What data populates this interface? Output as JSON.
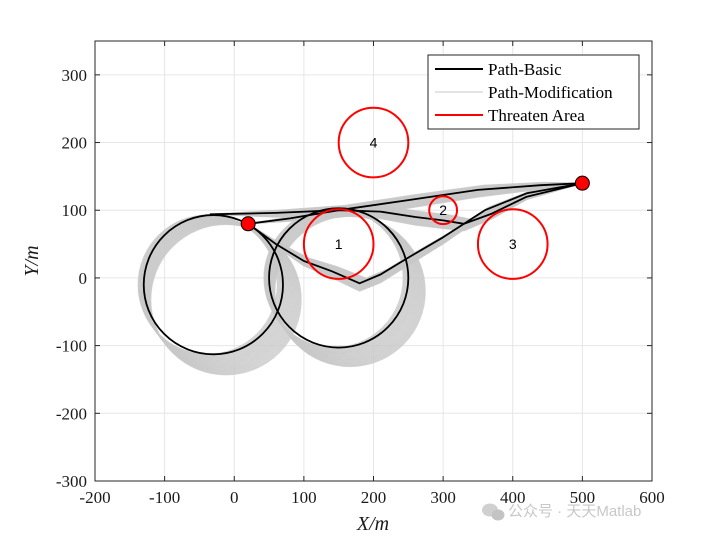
{
  "chart_data": {
    "type": "line",
    "xlabel": "X/m",
    "ylabel": "Y/m",
    "xlim": [
      -200,
      600
    ],
    "ylim": [
      -300,
      350
    ],
    "xticks": [
      "-200",
      "-100",
      "0",
      "100",
      "200",
      "300",
      "400",
      "500",
      "600"
    ],
    "yticks": [
      "300",
      "200",
      "100",
      "0",
      "-100",
      "-200",
      "-300"
    ],
    "grid": true,
    "legend_placement": "top-right",
    "legend": [
      "Path-Basic",
      "Path-Modification",
      "Threaten Area"
    ],
    "start_point": [
      20,
      80
    ],
    "goal_point": [
      500,
      140
    ],
    "threat_areas": [
      {
        "label": "1",
        "center": [
          150,
          50
        ],
        "radius": 50
      },
      {
        "label": "2",
        "center": [
          300,
          100
        ],
        "radius": 20
      },
      {
        "label": "3",
        "center": [
          400,
          50
        ],
        "radius": 50
      },
      {
        "label": "4",
        "center": [
          200,
          200
        ],
        "radius": 50
      }
    ],
    "series": [
      {
        "name": "Path-Basic",
        "color": "#000000",
        "segments": [
          {
            "kind": "circle",
            "center": [
              -30,
              -10
            ],
            "radius": 100
          },
          {
            "kind": "circle",
            "center": [
              150,
              0
            ],
            "radius": 100
          },
          {
            "kind": "polyline",
            "points": [
              [
                20,
                80
              ],
              [
                60,
                50
              ],
              [
                100,
                25
              ],
              [
                140,
                10
              ],
              [
                180,
                -8
              ],
              [
                210,
                5
              ],
              [
                250,
                30
              ],
              [
                300,
                60
              ],
              [
                360,
                100
              ],
              [
                420,
                125
              ],
              [
                500,
                140
              ]
            ]
          },
          {
            "kind": "polyline",
            "points": [
              [
                20,
                80
              ],
              [
                80,
                88
              ],
              [
                150,
                100
              ],
              [
                210,
                98
              ],
              [
                260,
                90
              ],
              [
                300,
                85
              ],
              [
                330,
                80
              ],
              [
                370,
                95
              ],
              [
                420,
                120
              ],
              [
                500,
                140
              ]
            ]
          },
          {
            "kind": "polyline",
            "points": [
              [
                -35,
                94
              ],
              [
                60,
                96
              ],
              [
                150,
                100
              ],
              [
                250,
                115
              ],
              [
                350,
                130
              ],
              [
                440,
                137
              ],
              [
                500,
                140
              ]
            ]
          }
        ]
      },
      {
        "name": "Path-Modification",
        "color": "#c8c8c8"
      },
      {
        "name": "Threaten Area",
        "color": "#ff0000"
      }
    ]
  },
  "watermark": "公众号 · 天天Matlab"
}
